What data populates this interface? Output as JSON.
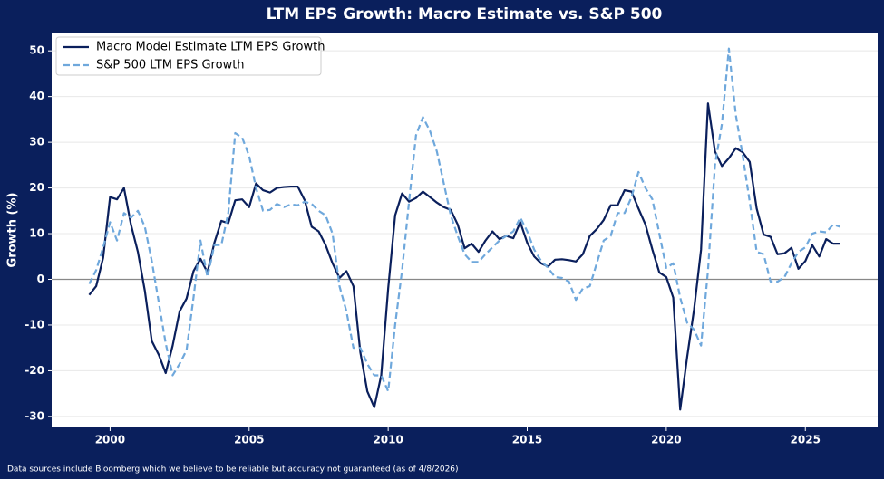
{
  "chart_data": {
    "type": "line",
    "title": "LTM EPS Growth: Macro Estimate vs. S&P 500",
    "ylabel": "Growth (%)",
    "footnote": "Data sources include Bloomberg which we believe to be reliable but accuracy not guaranteed (as of 4/8/2026)",
    "legend": "upper left",
    "grid": true,
    "xlim": [
      1997.9,
      2027.6
    ],
    "ylim": [
      -32.4,
      54
    ],
    "xticks": [
      2000,
      2005,
      2010,
      2015,
      2020,
      2025
    ],
    "yticks": [
      -30,
      -20,
      -10,
      0,
      10,
      20,
      30,
      40,
      50
    ],
    "x": [
      1999.25,
      1999.5,
      1999.75,
      2000,
      2000.25,
      2000.5,
      2000.75,
      2001,
      2001.25,
      2001.5,
      2001.75,
      2002,
      2002.25,
      2002.5,
      2002.75,
      2003,
      2003.25,
      2003.5,
      2003.75,
      2004,
      2004.25,
      2004.5,
      2004.75,
      2005,
      2005.25,
      2005.5,
      2005.75,
      2006,
      2006.25,
      2006.5,
      2006.75,
      2007,
      2007.25,
      2007.5,
      2007.75,
      2008,
      2008.25,
      2008.5,
      2008.75,
      2009,
      2009.25,
      2009.5,
      2009.75,
      2010,
      2010.25,
      2010.5,
      2010.75,
      2011,
      2011.25,
      2011.5,
      2011.75,
      2012,
      2012.25,
      2012.5,
      2012.75,
      2013,
      2013.25,
      2013.5,
      2013.75,
      2014,
      2014.25,
      2014.5,
      2014.75,
      2015,
      2015.25,
      2015.5,
      2015.75,
      2016,
      2016.25,
      2016.5,
      2016.75,
      2017,
      2017.25,
      2017.5,
      2017.75,
      2018,
      2018.25,
      2018.5,
      2018.75,
      2019,
      2019.25,
      2019.5,
      2019.75,
      2020,
      2020.25,
      2020.5,
      2020.75,
      2021,
      2021.25,
      2021.5,
      2021.75,
      2022,
      2022.25,
      2022.5,
      2022.75,
      2023,
      2023.25,
      2023.5,
      2023.75,
      2024,
      2024.25,
      2024.5,
      2024.75,
      2025,
      2025.25,
      2025.5,
      2025.75,
      2026,
      2026.25
    ],
    "series": [
      {
        "name": "Macro Model Estimate LTM EPS Growth",
        "color": "#0a1f5c",
        "dashed": false,
        "values": [
          -3.4,
          -1.5,
          4.7,
          18,
          17.5,
          20,
          12,
          6,
          -2.5,
          -13.5,
          -16.5,
          -20.5,
          -14.5,
          -7,
          -4.2,
          1.8,
          4.5,
          1.5,
          8,
          12.8,
          12.3,
          17.3,
          17.5,
          15.8,
          21,
          19.5,
          19,
          20,
          20.2,
          20.3,
          20.3,
          17.3,
          11.5,
          10.5,
          7.5,
          3.5,
          0.3,
          1.8,
          -1.5,
          -16,
          -24.5,
          -28,
          -21,
          -2,
          14,
          18.8,
          17,
          17.8,
          19.2,
          18,
          16.8,
          15.8,
          15.2,
          12,
          6.8,
          7.8,
          6,
          8.5,
          10.5,
          8.8,
          9.5,
          9,
          12.5,
          8,
          5,
          3.5,
          2.8,
          4.3,
          4.4,
          4.2,
          3.9,
          5.5,
          9.5,
          11,
          13,
          16.2,
          16.2,
          19.5,
          19.2,
          15.5,
          12,
          6.5,
          1.5,
          0.5,
          -4,
          -28.5,
          -17,
          -6.5,
          6.5,
          38.5,
          28,
          24.8,
          26.5,
          28.7,
          27.8,
          25.7,
          15.5,
          9.8,
          9.3,
          5.5,
          5.7,
          6.9,
          2.3,
          4,
          7.5,
          5,
          8.8,
          7.8,
          7.8
        ]
      },
      {
        "name": "S&P 500 LTM EPS Growth",
        "color": "#6fa8dc",
        "dashed": true,
        "values": [
          -1,
          2,
          7,
          12.5,
          8.5,
          14.5,
          13.5,
          15,
          11.5,
          4,
          -5,
          -14,
          -21,
          -18.5,
          -15.5,
          -4,
          8.5,
          0.5,
          7.5,
          7.5,
          14.5,
          32,
          31,
          27,
          20,
          15,
          15.2,
          16.5,
          15.8,
          16.4,
          16.2,
          17,
          16.5,
          15,
          14,
          10,
          -1.5,
          -7,
          -15,
          -15,
          -18.5,
          -21,
          -21,
          -24.5,
          -10,
          2,
          17,
          31.5,
          35.5,
          32.5,
          28,
          21,
          14,
          9.5,
          5.5,
          3.8,
          3.8,
          5.5,
          7,
          8.5,
          9.5,
          10.5,
          13.5,
          10.5,
          6.5,
          4,
          2.5,
          0.5,
          0.3,
          -0.5,
          -4.5,
          -2,
          -1.5,
          3.5,
          8.5,
          9.5,
          14.5,
          14.5,
          18,
          23.5,
          20,
          17.5,
          10,
          2.5,
          3.5,
          -4,
          -9.5,
          -11,
          -14.5,
          2,
          25,
          34,
          50.5,
          36,
          27,
          17,
          6,
          5.5,
          -0.5,
          -0.5,
          0.5,
          3.5,
          6,
          7,
          10,
          10.5,
          10.3,
          12,
          11.5
        ]
      }
    ]
  }
}
